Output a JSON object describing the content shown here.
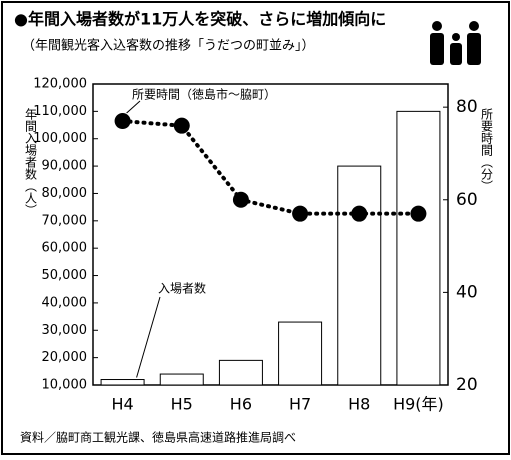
{
  "chart_data": {
    "type": "bar",
    "title": "●年間入場者数が11万人を突破、さらに増加傾向に",
    "subtitle": "（年間観光客入込客数の推移「うだつの町並み」）",
    "y_label": "年間入場者数（人）",
    "y2_label": "所要時間（分）",
    "source": "資料／脇町商工観光課、徳島県高速道路推進局調べ",
    "categories": [
      "H4",
      "H5",
      "H6",
      "H7",
      "H8",
      "H9(年)"
    ],
    "series": [
      {
        "name": "入場者数",
        "type": "bar",
        "color": "#ffffff",
        "values": [
          12000,
          14000,
          19000,
          33000,
          90000,
          110000
        ]
      },
      {
        "name": "所要時間（徳島市～脇町）",
        "type": "line",
        "axis": "y2",
        "color": "#000000",
        "values": [
          77,
          76,
          60,
          57,
          57,
          57
        ]
      }
    ],
    "ylim": [
      10000,
      120000
    ],
    "yticks": [
      {
        "value": 10000,
        "label": "10,000"
      },
      {
        "value": 20000,
        "label": "20,000"
      },
      {
        "value": 30000,
        "label": "30,000"
      },
      {
        "value": 40000,
        "label": "40,000"
      },
      {
        "value": 50000,
        "label": "50,000"
      },
      {
        "value": 60000,
        "label": "60,000"
      },
      {
        "value": 70000,
        "label": "70,000"
      },
      {
        "value": 80000,
        "label": "80,000"
      },
      {
        "value": 90000,
        "label": "90,000"
      },
      {
        "value": 100000,
        "label": "100,000"
      },
      {
        "value": 110000,
        "label": "110,000"
      },
      {
        "value": 120000,
        "label": "120,000"
      }
    ],
    "y2lim": [
      20,
      85
    ],
    "y2ticks": [
      20,
      40,
      60,
      80
    ]
  }
}
